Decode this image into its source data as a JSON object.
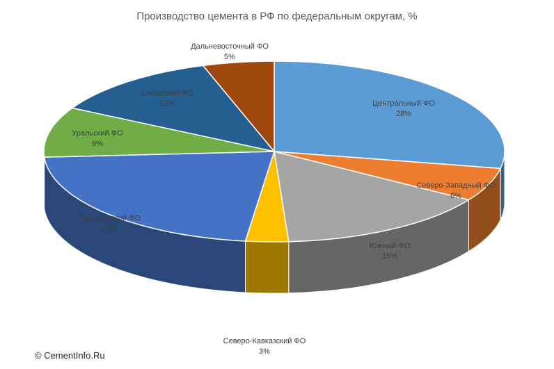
{
  "chart_data": {
    "type": "pie",
    "style": "3d-exploded-pie",
    "title": "Производство цемента в РФ по федеральным округам, %",
    "unit": "%",
    "slices": [
      {
        "name": "Центральный ФО",
        "value": 28,
        "label": "28%",
        "color": "#5B9BD5"
      },
      {
        "name": "Северо-Западный ФО",
        "value": 6,
        "label": "6%",
        "color": "#ED7D31"
      },
      {
        "name": "Южный ФО",
        "value": 15,
        "label": "15%",
        "color": "#A5A5A5"
      },
      {
        "name": "Северо-Кавказский ФО",
        "value": 3,
        "label": "3%",
        "color": "#FFC000"
      },
      {
        "name": "Приволжский ФО",
        "value": 22,
        "label": "22%",
        "color": "#4472C4"
      },
      {
        "name": "Уральский ФО",
        "value": 9,
        "label": "9%",
        "color": "#70AD47"
      },
      {
        "name": "Сибирский ФО",
        "value": 12,
        "label": "12%",
        "color": "#255E91"
      },
      {
        "name": "Дальневосточный ФО",
        "value": 5,
        "label": "5%",
        "color": "#9E480E"
      }
    ],
    "legend": false
  },
  "credit": "© CementInfo.Ru"
}
